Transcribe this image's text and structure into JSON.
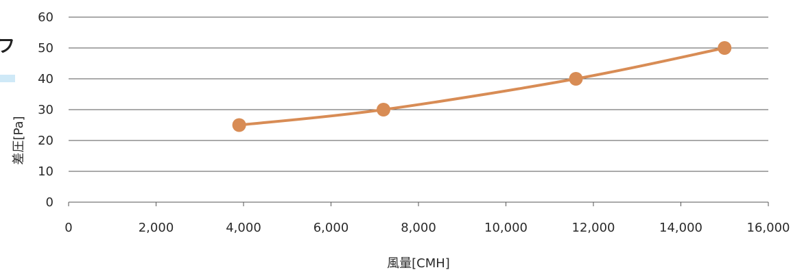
{
  "chart_data": {
    "type": "line",
    "title": "",
    "xlabel": "風量[CMH]",
    "ylabel": "差圧[Pa]",
    "xlim": [
      0,
      16000
    ],
    "ylim": [
      0,
      60
    ],
    "x_ticks": [
      0,
      2000,
      4000,
      6000,
      8000,
      10000,
      12000,
      14000,
      16000
    ],
    "x_tick_labels": [
      "0",
      "2,000",
      "4,000",
      "6,000",
      "8,000",
      "10,000",
      "12,000",
      "14,000",
      "16,000"
    ],
    "y_ticks": [
      0,
      10,
      20,
      30,
      40,
      50,
      60
    ],
    "y_tick_labels": [
      "0",
      "10",
      "20",
      "30",
      "40",
      "50",
      "60"
    ],
    "grid": "horizontal",
    "legend": "none",
    "series": [
      {
        "color": "#D88C55",
        "x": [
          3900,
          7200,
          11600,
          15000
        ],
        "y": [
          25,
          30,
          40,
          50
        ]
      }
    ]
  },
  "clipped_left_text": "フ",
  "colors": {
    "series": "#D88C55",
    "gridline": "#555555",
    "clipped_bar": "#cfe9f7"
  }
}
